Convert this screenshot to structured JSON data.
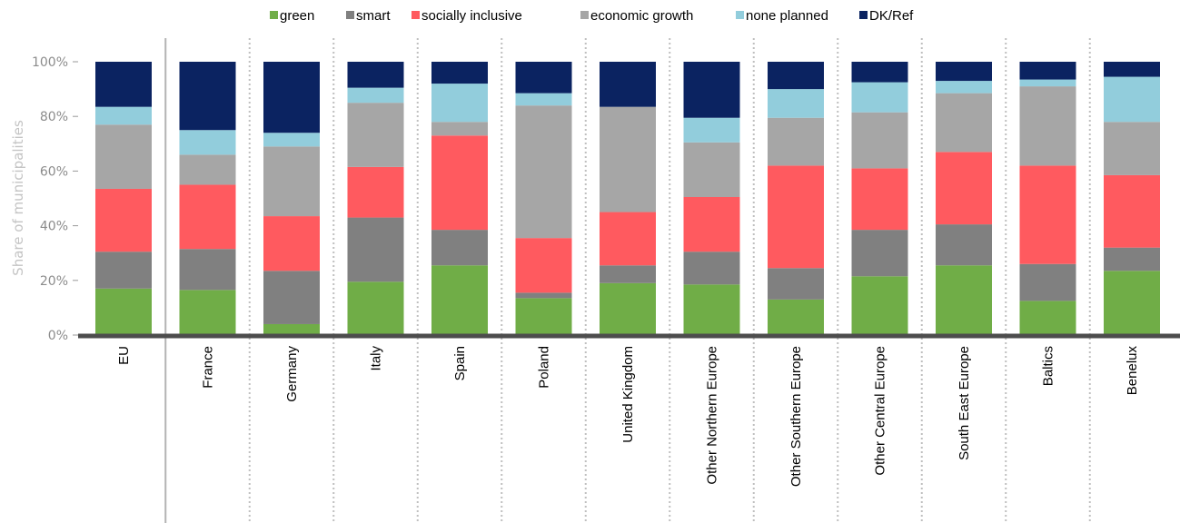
{
  "chart_data": {
    "type": "bar",
    "stacked": true,
    "ylabel": "Share of municipalities",
    "ylim": [
      0,
      100
    ],
    "yticks": [
      "0%",
      "20%",
      "40%",
      "60%",
      "80%",
      "100%"
    ],
    "legend_position": "top",
    "categories": [
      "EU",
      "France",
      "Germany",
      "Italy",
      "Spain",
      "Poland",
      "United Kingdom",
      "Other Northern Europe",
      "Other Southern Europe",
      "Other Central Europe",
      "South East Europe",
      "Baltics",
      "Benelux"
    ],
    "series": [
      {
        "name": "green",
        "color": "#70ad47",
        "values": [
          17,
          16.5,
          4,
          19.5,
          25.5,
          13.5,
          19,
          18.5,
          13,
          21.5,
          25.5,
          12.5,
          23.5
        ]
      },
      {
        "name": "smart",
        "color": "#808080",
        "values": [
          13.5,
          15,
          19.5,
          23.5,
          13,
          2,
          6.5,
          12,
          11.5,
          17,
          15,
          13.5,
          8.5
        ]
      },
      {
        "name": "socially inclusive",
        "color": "#ff5a5f",
        "values": [
          23,
          23.5,
          20,
          18.5,
          34.5,
          20,
          19.5,
          20,
          37.5,
          22.5,
          26.5,
          36,
          26.5
        ]
      },
      {
        "name": "economic growth",
        "color": "#a6a6a6",
        "values": [
          23.5,
          11,
          25.5,
          23.5,
          5,
          48.5,
          38.5,
          20,
          17.5,
          20.5,
          21.5,
          29,
          19.5
        ]
      },
      {
        "name": "none planned",
        "color": "#92cddc",
        "values": [
          6.5,
          9,
          5,
          5.5,
          14,
          4.5,
          0,
          9,
          10.5,
          11,
          4.5,
          2.5,
          16.5
        ]
      },
      {
        "name": "DK/Ref",
        "color": "#0b2361",
        "values": [
          16.5,
          25,
          26,
          9.5,
          8,
          11.5,
          16.5,
          20.5,
          10,
          7.5,
          7,
          6.5,
          5.5
        ]
      }
    ]
  }
}
